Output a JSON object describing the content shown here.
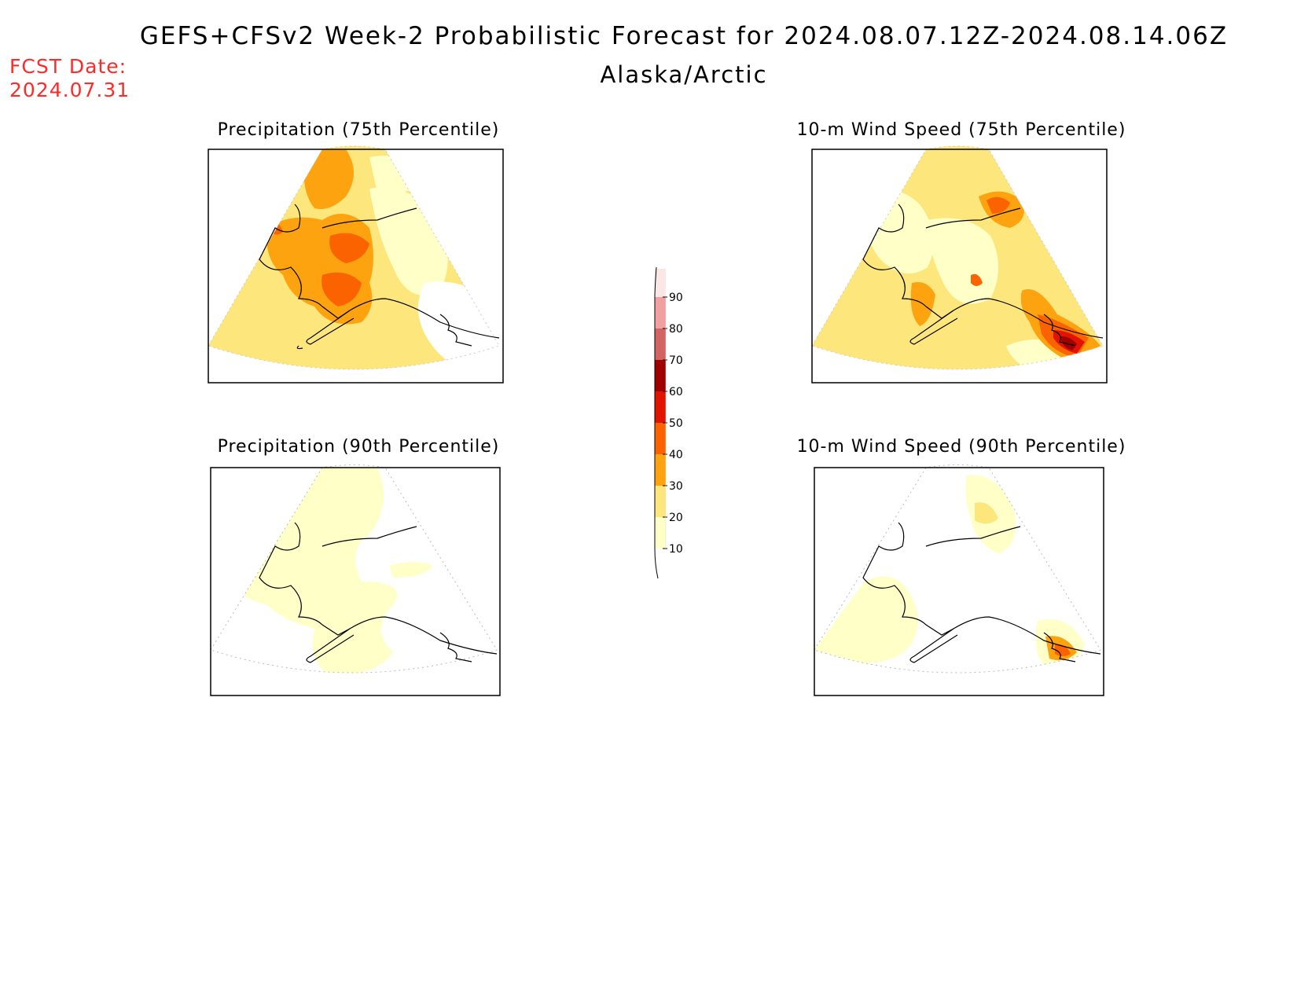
{
  "header": {
    "title": "GEFS+CFSv2 Week-2 Probabilistic Forecast for 2024.08.07.12Z-2024.08.14.06Z",
    "region": "Alaska/Arctic",
    "fcst_label": "FCST Date:",
    "fcst_date": "2024.07.31"
  },
  "panels": [
    {
      "id": "precip-75",
      "title": "Precipitation (75th Percentile)"
    },
    {
      "id": "wind-75",
      "title": "10-m Wind Speed (75th Percentile)"
    },
    {
      "id": "precip-90",
      "title": "Precipitation (90th Percentile)"
    },
    {
      "id": "wind-90",
      "title": "10-m Wind Speed (90th Percentile)"
    }
  ],
  "colorbar": {
    "labels": [
      "10",
      "20",
      "30",
      "40",
      "50",
      "60",
      "70",
      "80",
      "90"
    ],
    "colors": [
      "#ffffc8",
      "#fde67c",
      "#fca30f",
      "#fb6300",
      "#e01400",
      "#a00000",
      "#d26464",
      "#f0a0a0",
      "#fbe6e6"
    ],
    "unit_note": ""
  },
  "colors": {
    "fcst_text": "#ff2a2a",
    "level_10": "#ffffc8",
    "level_20": "#fde67c",
    "level_30": "#fca30f",
    "level_40": "#fb6300",
    "level_50": "#e01400",
    "level_60": "#a00000"
  }
}
